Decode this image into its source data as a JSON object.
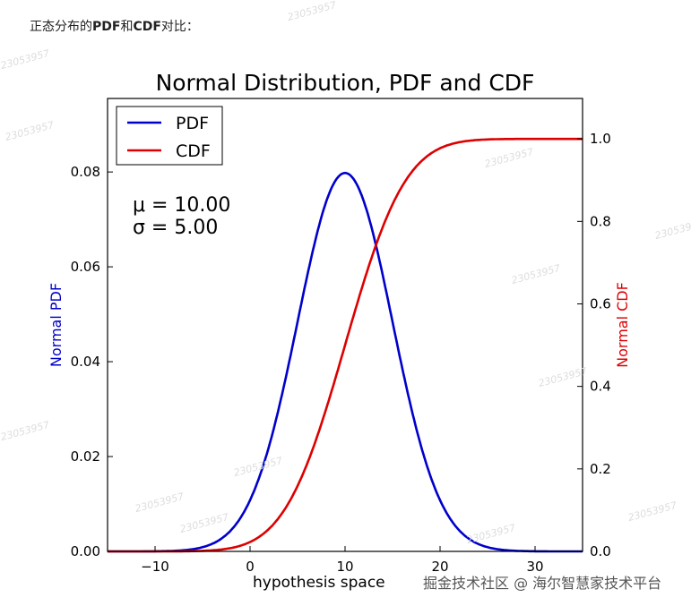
{
  "intro": {
    "prefix": "正态分布的",
    "bold1": "PDF",
    "mid": "和",
    "bold2": "CDF",
    "suffix": "对比："
  },
  "credit": "掘金技术社区 @ 海尔智慧家技术平台",
  "watermark": "23053957",
  "chart_data": {
    "type": "line",
    "title": "Normal Distribution, PDF and CDF",
    "xlabel": "hypothesis space",
    "ylabel_left": "Normal PDF",
    "ylabel_right": "Normal CDF",
    "xlim": [
      -15,
      35
    ],
    "ylim_left": [
      0,
      0.0955
    ],
    "ylim_right": [
      0,
      1.098
    ],
    "xticks": [
      "−10",
      "0",
      "10",
      "20",
      "30"
    ],
    "xtick_values": [
      -10,
      0,
      10,
      20,
      30
    ],
    "yticks_left": [
      "0.00",
      "0.02",
      "0.04",
      "0.06",
      "0.08"
    ],
    "ytick_left_values": [
      0,
      0.02,
      0.04,
      0.06,
      0.08
    ],
    "yticks_right": [
      "0.0",
      "0.2",
      "0.4",
      "0.6",
      "0.8",
      "1.0"
    ],
    "ytick_right_values": [
      0,
      0.2,
      0.4,
      0.6,
      0.8,
      1.0
    ],
    "mu": 10,
    "sigma": 5,
    "annotation_mu": "μ = 10.00",
    "annotation_sigma": "σ = 5.00",
    "legend_position": "top-left",
    "series": [
      {
        "name": "PDF",
        "axis": "left",
        "color": "#0000cc",
        "function": "normal_pdf"
      },
      {
        "name": "CDF",
        "axis": "right",
        "color": "#dd0000",
        "function": "normal_cdf"
      }
    ]
  }
}
